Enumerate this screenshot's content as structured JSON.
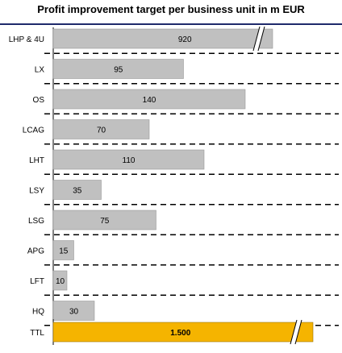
{
  "chart_data": {
    "type": "bar",
    "orientation": "horizontal",
    "title": "Profit improvement target per business unit in m EUR",
    "categories": [
      "LHP & 4U",
      "LX",
      "OS",
      "LCAG",
      "LHT",
      "LSY",
      "LSG",
      "APG",
      "LFT",
      "HQ"
    ],
    "values": [
      920,
      95,
      140,
      70,
      110,
      35,
      75,
      15,
      10,
      30
    ],
    "value_labels": [
      "920",
      "95",
      "140",
      "70",
      "110",
      "35",
      "75",
      "15",
      "10",
      "30"
    ],
    "axis_break": [
      "LHP & 4U"
    ],
    "total": {
      "category": "TTL",
      "value": 1500,
      "value_label": "1.500",
      "axis_break": true
    },
    "colors": {
      "bar": "#c0c0c0",
      "total_bar": "#f5b400",
      "title_rule": "#1f2a6b"
    },
    "grid": false,
    "legend": "none"
  }
}
